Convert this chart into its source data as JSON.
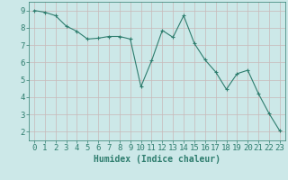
{
  "x": [
    0,
    1,
    2,
    3,
    4,
    5,
    6,
    7,
    8,
    9,
    10,
    11,
    12,
    13,
    14,
    15,
    16,
    17,
    18,
    19,
    20,
    21,
    22,
    23
  ],
  "y": [
    9.0,
    8.9,
    8.7,
    8.1,
    7.8,
    7.35,
    7.4,
    7.5,
    7.5,
    7.35,
    4.6,
    6.1,
    7.85,
    7.45,
    8.7,
    7.1,
    6.15,
    5.45,
    4.45,
    5.35,
    5.55,
    4.2,
    3.05,
    2.05
  ],
  "line_color": "#2e7d6e",
  "marker": "+",
  "marker_size": 3,
  "bg_color": "#cce8e8",
  "grid_color": "#c8b8b8",
  "tick_color": "#2e7d6e",
  "xlabel": "Humidex (Indice chaleur)",
  "xlim": [
    -0.5,
    23.5
  ],
  "ylim": [
    1.5,
    9.5
  ],
  "yticks": [
    2,
    3,
    4,
    5,
    6,
    7,
    8,
    9
  ],
  "xticks": [
    0,
    1,
    2,
    3,
    4,
    5,
    6,
    7,
    8,
    9,
    10,
    11,
    12,
    13,
    14,
    15,
    16,
    17,
    18,
    19,
    20,
    21,
    22,
    23
  ],
  "font_size": 6.5
}
